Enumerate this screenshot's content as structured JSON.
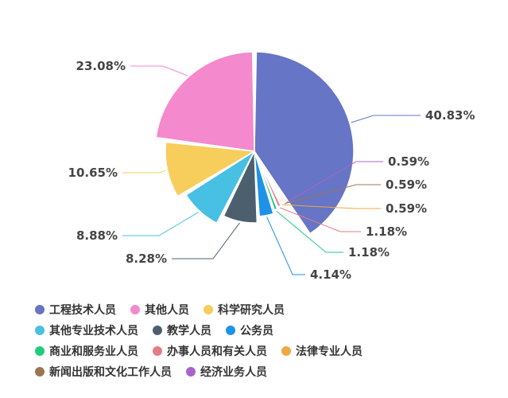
{
  "chart_data": {
    "type": "pie",
    "categories": [
      "工程技术人员",
      "其他人员",
      "科学研究人员",
      "其他专业技术人员",
      "教学人员",
      "公务员",
      "商业和服务业人员",
      "办事人员和有关人员",
      "法律专业人员",
      "新闻出版和文化工作人员",
      "经济业务人员"
    ],
    "values": [
      40.83,
      23.08,
      10.65,
      8.88,
      8.28,
      4.14,
      1.18,
      1.18,
      0.59,
      0.59,
      0.59
    ],
    "labels": [
      "40.83%",
      "23.08%",
      "10.65%",
      "8.88%",
      "8.28%",
      "4.14%",
      "1.18%",
      "1.18%",
      "0.59%",
      "0.59%",
      "0.59%"
    ],
    "colors": [
      "#6675c5",
      "#f489cd",
      "#f7cd5b",
      "#48c0e3",
      "#4c5f6e",
      "#1e92e6",
      "#1fcc7d",
      "#e37c86",
      "#f0a843",
      "#9b7653",
      "#aa64c8"
    ],
    "legend_position": "bottom",
    "legend_order": [
      0,
      1,
      2,
      3,
      4,
      5,
      6,
      7,
      8,
      9,
      10
    ],
    "legend_rows": [
      [
        0,
        1,
        2
      ],
      [
        3,
        4,
        5
      ],
      [
        6,
        7,
        8
      ],
      [
        9,
        10
      ]
    ]
  }
}
